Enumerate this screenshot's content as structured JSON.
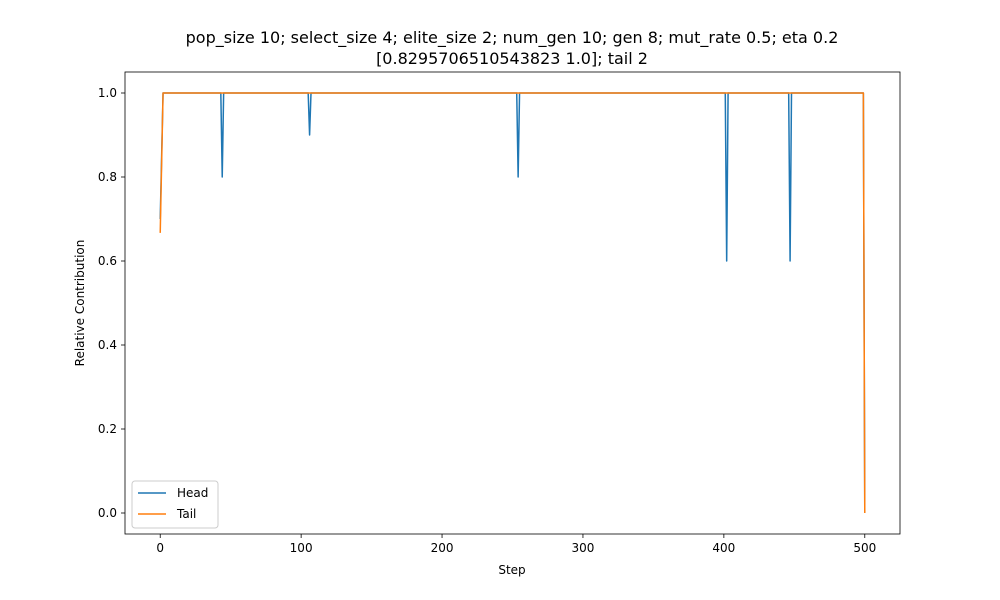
{
  "chart_data": {
    "type": "line",
    "title_line1": "pop_size 10; select_size 4; elite_size 2; num_gen 10; gen 8; mut_rate 0.5; eta 0.2",
    "title_line2": "[0.8295706510543823 1.0]; tail 2",
    "xlabel": "Step",
    "ylabel": "Relative Contribution",
    "xlim": [
      -25,
      525
    ],
    "ylim": [
      -0.05,
      1.05
    ],
    "xticks": [
      0,
      100,
      200,
      300,
      400,
      500
    ],
    "xtick_labels": [
      "0",
      "100",
      "200",
      "300",
      "400",
      "500"
    ],
    "yticks": [
      0.0,
      0.2,
      0.4,
      0.6,
      0.8,
      1.0
    ],
    "ytick_labels": [
      "0.0",
      "0.2",
      "0.4",
      "0.6",
      "0.8",
      "1.0"
    ],
    "grid": false,
    "legend_position": "lower-left",
    "series": [
      {
        "name": "Head",
        "color": "#1f77b4",
        "x": [
          0,
          2,
          43,
          44,
          45,
          105,
          106,
          107,
          253,
          254,
          255,
          401,
          402,
          403,
          446,
          447,
          448,
          499,
          500
        ],
        "y": [
          0.7,
          1.0,
          1.0,
          0.8,
          1.0,
          1.0,
          0.9,
          1.0,
          1.0,
          0.8,
          1.0,
          1.0,
          0.6,
          1.0,
          1.0,
          0.6,
          1.0,
          1.0,
          0.0
        ]
      },
      {
        "name": "Tail",
        "color": "#ff7f0e",
        "x": [
          0,
          2,
          499,
          500
        ],
        "y": [
          0.667,
          1.0,
          1.0,
          0.0
        ]
      }
    ]
  }
}
